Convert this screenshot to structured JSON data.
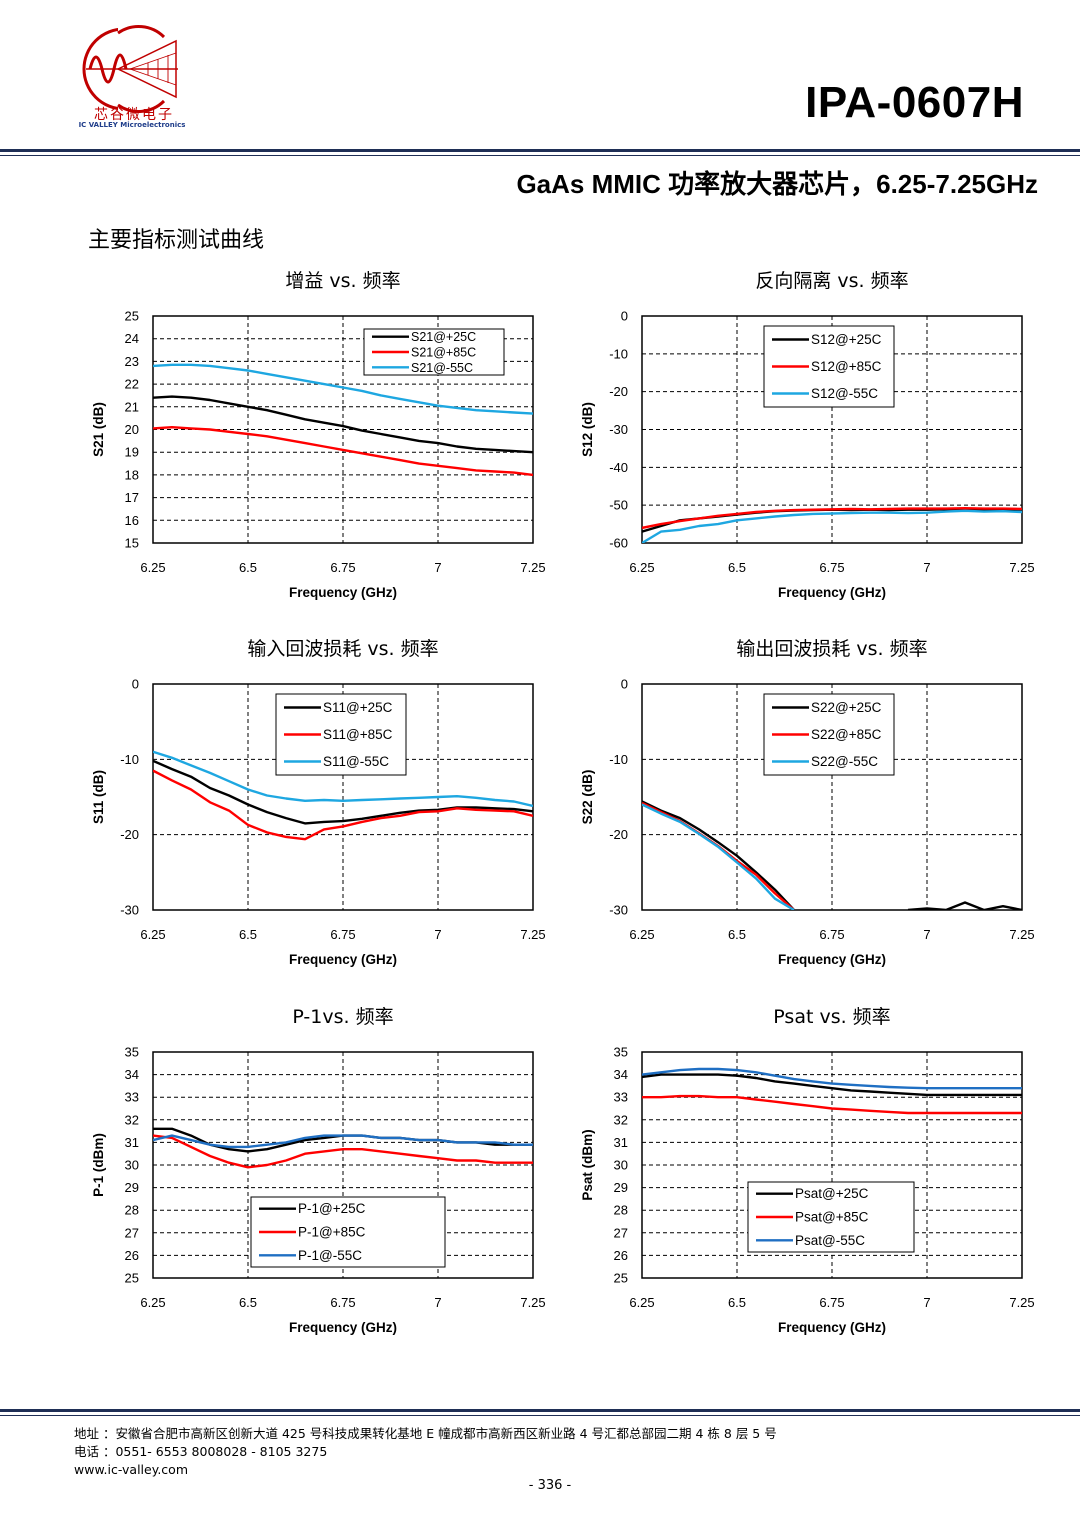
{
  "header": {
    "brand_cn": "芯谷微电子",
    "brand_en": "IC VALLEY Microelectronics",
    "part_number": "IPA-0607H",
    "subtitle": "GaAs MMIC 功率放大器芯片，6.25-7.25GHz"
  },
  "section_heading": "主要指标测试曲线",
  "colors": {
    "rule": "#1f2f56",
    "logo_red": "#c00000",
    "black_series": "#000000",
    "red_series": "#ff0000",
    "cyan_series": "#1ea7e1",
    "blue_series": "#1f6fc3"
  },
  "chart_data": [
    {
      "type": "line",
      "title": "增益 vs. 频率",
      "xlabel": "Frequency (GHz)",
      "ylabel": "S21 (dB)",
      "xlim": [
        6.25,
        7.25
      ],
      "ylim": [
        15,
        25
      ],
      "xticks": [
        "6.25",
        "6.5",
        "6.75",
        "7",
        "7.25"
      ],
      "yticks": [
        "15",
        "16",
        "17",
        "18",
        "19",
        "20",
        "21",
        "22",
        "23",
        "24",
        "25"
      ],
      "grid": true,
      "legend_position": "top-center",
      "x": [
        6.25,
        6.3,
        6.35,
        6.4,
        6.45,
        6.5,
        6.55,
        6.6,
        6.65,
        6.7,
        6.75,
        6.8,
        6.85,
        6.9,
        6.95,
        7.0,
        7.05,
        7.1,
        7.15,
        7.2,
        7.25
      ],
      "series": [
        {
          "name": "S21@+25C",
          "color": "#000000",
          "values": [
            21.4,
            21.45,
            21.4,
            21.3,
            21.15,
            21.0,
            20.85,
            20.65,
            20.45,
            20.3,
            20.15,
            19.95,
            19.8,
            19.65,
            19.5,
            19.4,
            19.25,
            19.15,
            19.1,
            19.05,
            19.0
          ]
        },
        {
          "name": "S21@+85C",
          "color": "#ff0000",
          "values": [
            20.05,
            20.1,
            20.05,
            20.0,
            19.9,
            19.8,
            19.7,
            19.55,
            19.4,
            19.25,
            19.1,
            18.95,
            18.8,
            18.65,
            18.5,
            18.4,
            18.3,
            18.2,
            18.15,
            18.1,
            18.0
          ]
        },
        {
          "name": "S21@-55C",
          "color": "#1ea7e1",
          "values": [
            22.8,
            22.85,
            22.85,
            22.8,
            22.7,
            22.6,
            22.45,
            22.3,
            22.15,
            22.0,
            21.85,
            21.7,
            21.5,
            21.35,
            21.2,
            21.05,
            20.95,
            20.85,
            20.8,
            20.75,
            20.7
          ]
        }
      ]
    },
    {
      "type": "line",
      "title": "反向隔离 vs. 频率",
      "xlabel": "Frequency (GHz)",
      "ylabel": "S12 (dB)",
      "xlim": [
        6.25,
        7.25
      ],
      "ylim": [
        -60,
        0
      ],
      "xticks": [
        "6.25",
        "6.5",
        "6.75",
        "7",
        "7.25"
      ],
      "yticks": [
        "-60",
        "-50",
        "-40",
        "-30",
        "-20",
        "-10",
        "0"
      ],
      "grid": true,
      "legend_position": "top-center",
      "x": [
        6.25,
        6.3,
        6.35,
        6.4,
        6.45,
        6.5,
        6.55,
        6.6,
        6.65,
        6.7,
        6.75,
        6.8,
        6.85,
        6.9,
        6.95,
        7.0,
        7.05,
        7.1,
        7.15,
        7.2,
        7.25
      ],
      "series": [
        {
          "name": "S12@+25C",
          "color": "#000000",
          "values": [
            -57.0,
            -55.5,
            -54.0,
            -53.5,
            -53.0,
            -52.5,
            -52.0,
            -51.6,
            -51.4,
            -51.3,
            -51.2,
            -51.3,
            -51.2,
            -51.3,
            -51.2,
            -51.2,
            -51.1,
            -51.0,
            -51.2,
            -51.1,
            -51.2
          ]
        },
        {
          "name": "S12@+85C",
          "color": "#ff0000",
          "values": [
            -56.0,
            -55.0,
            -54.2,
            -53.5,
            -52.8,
            -52.3,
            -51.8,
            -51.5,
            -51.3,
            -51.2,
            -51.1,
            -51.0,
            -51.1,
            -51.0,
            -50.9,
            -50.9,
            -50.9,
            -50.8,
            -50.9,
            -50.9,
            -51.0
          ]
        },
        {
          "name": "S12@-55C",
          "color": "#1ea7e1",
          "values": [
            -60.0,
            -57.0,
            -56.5,
            -55.5,
            -55.0,
            -54.0,
            -53.5,
            -53.0,
            -52.6,
            -52.3,
            -52.2,
            -52.1,
            -52.0,
            -52.0,
            -52.1,
            -52.0,
            -51.7,
            -51.5,
            -51.7,
            -51.6,
            -51.8
          ]
        }
      ]
    },
    {
      "type": "line",
      "title": "输入回波损耗 vs. 频率",
      "xlabel": "Frequency (GHz)",
      "ylabel": "S11 (dB)",
      "xlim": [
        6.25,
        7.25
      ],
      "ylim": [
        -30,
        0
      ],
      "xticks": [
        "6.25",
        "6.5",
        "6.75",
        "7",
        "7.25"
      ],
      "yticks": [
        "-30",
        "-20",
        "-10",
        "0"
      ],
      "grid": true,
      "legend_position": "top-center",
      "x": [
        6.25,
        6.3,
        6.35,
        6.4,
        6.45,
        6.5,
        6.55,
        6.6,
        6.65,
        6.7,
        6.75,
        6.8,
        6.85,
        6.9,
        6.95,
        7.0,
        7.05,
        7.1,
        7.15,
        7.2,
        7.25
      ],
      "series": [
        {
          "name": "S11@+25C",
          "color": "#000000",
          "values": [
            -10.2,
            -11.3,
            -12.3,
            -13.8,
            -14.8,
            -16.0,
            -17.0,
            -17.8,
            -18.5,
            -18.3,
            -18.2,
            -17.9,
            -17.5,
            -17.1,
            -16.8,
            -16.7,
            -16.4,
            -16.4,
            -16.5,
            -16.6,
            -16.9
          ]
        },
        {
          "name": "S11@+85C",
          "color": "#ff0000",
          "values": [
            -11.5,
            -12.8,
            -14.0,
            -15.7,
            -16.8,
            -18.7,
            -19.7,
            -20.3,
            -20.6,
            -19.3,
            -18.9,
            -18.3,
            -17.8,
            -17.5,
            -17.0,
            -16.9,
            -16.5,
            -16.7,
            -16.8,
            -16.9,
            -17.5
          ]
        },
        {
          "name": "S11@-55C",
          "color": "#1ea7e1",
          "values": [
            -9.0,
            -9.8,
            -10.8,
            -11.8,
            -12.9,
            -14.0,
            -14.8,
            -15.2,
            -15.5,
            -15.4,
            -15.5,
            -15.4,
            -15.3,
            -15.2,
            -15.1,
            -15.0,
            -14.9,
            -15.1,
            -15.4,
            -15.6,
            -16.2
          ]
        }
      ]
    },
    {
      "type": "line",
      "title": "输出回波损耗 vs. 频率",
      "xlabel": "Frequency (GHz)",
      "ylabel": "S22 (dB)",
      "xlim": [
        6.25,
        7.25
      ],
      "ylim": [
        -30,
        0
      ],
      "xticks": [
        "6.25",
        "6.5",
        "6.75",
        "7",
        "7.25"
      ],
      "yticks": [
        "-30",
        "-20",
        "-10",
        "0"
      ],
      "grid": true,
      "legend_position": "top-center",
      "x": [
        6.25,
        6.3,
        6.35,
        6.4,
        6.45,
        6.5,
        6.55,
        6.6,
        6.65,
        6.7,
        6.75,
        6.8,
        6.85,
        6.9,
        6.95,
        7.0,
        7.05,
        7.1,
        7.15,
        7.2,
        7.25
      ],
      "series": [
        {
          "name": "S22@+25C",
          "color": "#000000",
          "values": [
            -15.6,
            -16.8,
            -17.8,
            -19.3,
            -21.0,
            -22.8,
            -25.0,
            -27.3,
            -30.0,
            null,
            null,
            null,
            null,
            null,
            -30.0,
            -29.8,
            -30.0,
            -29.0,
            -30.0,
            -29.5,
            -30.0
          ]
        },
        {
          "name": "S22@+85C",
          "color": "#ff0000",
          "values": [
            -15.8,
            -17.0,
            -18.2,
            -19.8,
            -21.5,
            -23.5,
            -25.3,
            -27.8,
            -30.0,
            null,
            null,
            null,
            null,
            null,
            null,
            null,
            null,
            null,
            null,
            null,
            null
          ]
        },
        {
          "name": "S22@-55C",
          "color": "#1ea7e1",
          "values": [
            -16.0,
            -17.2,
            -18.3,
            -19.9,
            -21.6,
            -23.7,
            -25.8,
            -28.5,
            -30.0,
            null,
            null,
            null,
            null,
            null,
            null,
            null,
            null,
            null,
            null,
            null,
            null
          ]
        }
      ]
    },
    {
      "type": "line",
      "title": "P-1vs. 频率",
      "xlabel": "Frequency (GHz)",
      "ylabel": "P-1 (dBm)",
      "xlim": [
        6.25,
        7.25
      ],
      "ylim": [
        25,
        35
      ],
      "xticks": [
        "6.25",
        "6.5",
        "6.75",
        "7",
        "7.25"
      ],
      "yticks": [
        "25",
        "26",
        "27",
        "28",
        "29",
        "30",
        "31",
        "32",
        "33",
        "34",
        "35"
      ],
      "grid": true,
      "legend_position": "bottom-center",
      "x": [
        6.25,
        6.3,
        6.35,
        6.4,
        6.45,
        6.5,
        6.55,
        6.6,
        6.65,
        6.7,
        6.75,
        6.8,
        6.85,
        6.9,
        6.95,
        7.0,
        7.05,
        7.1,
        7.15,
        7.2,
        7.25
      ],
      "series": [
        {
          "name": "P-1@+25C",
          "color": "#000000",
          "values": [
            31.6,
            31.6,
            31.3,
            30.9,
            30.7,
            30.6,
            30.7,
            30.9,
            31.1,
            31.2,
            31.3,
            31.3,
            31.2,
            31.2,
            31.1,
            31.1,
            31.0,
            31.0,
            30.9,
            30.9,
            30.9
          ]
        },
        {
          "name": "P-1@+85C",
          "color": "#ff0000",
          "values": [
            31.3,
            31.2,
            30.8,
            30.4,
            30.1,
            29.9,
            30.0,
            30.2,
            30.5,
            30.6,
            30.7,
            30.7,
            30.6,
            30.5,
            30.4,
            30.3,
            30.2,
            30.2,
            30.1,
            30.1,
            30.1
          ]
        },
        {
          "name": "P-1@-55C",
          "color": "#1f6fc3",
          "values": [
            31.1,
            31.3,
            31.1,
            30.9,
            30.8,
            30.8,
            30.9,
            31.0,
            31.2,
            31.3,
            31.3,
            31.3,
            31.2,
            31.2,
            31.1,
            31.1,
            31.0,
            31.0,
            31.0,
            30.9,
            30.9
          ]
        }
      ]
    },
    {
      "type": "line",
      "title": "Psat vs. 频率",
      "xlabel": "Frequency (GHz)",
      "ylabel": "Psat (dBm)",
      "xlim": [
        6.25,
        7.25
      ],
      "ylim": [
        25,
        35
      ],
      "xticks": [
        "6.25",
        "6.5",
        "6.75",
        "7",
        "7.25"
      ],
      "yticks": [
        "25",
        "26",
        "27",
        "28",
        "29",
        "30",
        "31",
        "32",
        "33",
        "34",
        "35"
      ],
      "grid": true,
      "legend_position": "bottom-center",
      "x": [
        6.25,
        6.3,
        6.35,
        6.4,
        6.45,
        6.5,
        6.55,
        6.6,
        6.65,
        6.7,
        6.75,
        6.8,
        6.85,
        6.9,
        6.95,
        7.0,
        7.05,
        7.1,
        7.15,
        7.2,
        7.25
      ],
      "series": [
        {
          "name": "Psat@+25C",
          "color": "#000000",
          "values": [
            33.9,
            34.0,
            34.0,
            34.0,
            34.0,
            33.95,
            33.85,
            33.7,
            33.6,
            33.5,
            33.4,
            33.3,
            33.25,
            33.2,
            33.15,
            33.1,
            33.1,
            33.1,
            33.1,
            33.1,
            33.1
          ]
        },
        {
          "name": "Psat@+85C",
          "color": "#ff0000",
          "values": [
            33.0,
            33.0,
            33.05,
            33.05,
            33.0,
            33.0,
            32.9,
            32.8,
            32.7,
            32.6,
            32.5,
            32.45,
            32.4,
            32.35,
            32.3,
            32.3,
            32.3,
            32.3,
            32.3,
            32.3,
            32.3
          ]
        },
        {
          "name": "Psat@-55C",
          "color": "#1f6fc3",
          "values": [
            34.0,
            34.1,
            34.2,
            34.25,
            34.25,
            34.2,
            34.1,
            33.95,
            33.8,
            33.7,
            33.6,
            33.55,
            33.5,
            33.45,
            33.42,
            33.4,
            33.4,
            33.4,
            33.4,
            33.4,
            33.4
          ]
        }
      ]
    }
  ],
  "footer": {
    "address": "地址 ：安徽省合肥市高新区创新大道 425 号科技成果转化基地 E 幢成都市高新西区新业路 4 号汇都总部园二期 4 栋 8 层 5 号",
    "phone": "电话 ：0551- 6553 8008028 - 8105 3275",
    "website": "www.ic-valley.com",
    "page_number": "- 336 -"
  }
}
